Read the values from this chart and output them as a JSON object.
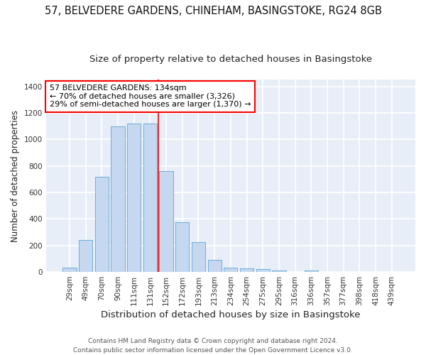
{
  "title1": "57, BELVEDERE GARDENS, CHINEHAM, BASINGSTOKE, RG24 8GB",
  "title2": "Size of property relative to detached houses in Basingstoke",
  "xlabel": "Distribution of detached houses by size in Basingstoke",
  "ylabel": "Number of detached properties",
  "categories": [
    "29sqm",
    "49sqm",
    "70sqm",
    "90sqm",
    "111sqm",
    "131sqm",
    "152sqm",
    "172sqm",
    "193sqm",
    "213sqm",
    "234sqm",
    "254sqm",
    "275sqm",
    "295sqm",
    "316sqm",
    "336sqm",
    "357sqm",
    "377sqm",
    "398sqm",
    "418sqm",
    "439sqm"
  ],
  "values": [
    35,
    242,
    720,
    1100,
    1120,
    1120,
    760,
    378,
    228,
    90,
    35,
    28,
    20,
    12,
    0,
    12,
    0,
    0,
    0,
    0,
    0
  ],
  "bar_color": "#c5d8f0",
  "bar_edge_color": "#6baed6",
  "bar_width": 0.85,
  "red_line_x": 5.5,
  "annotation_line1": "57 BELVEDERE GARDENS: 134sqm",
  "annotation_line2": "← 70% of detached houses are smaller (3,326)",
  "annotation_line3": "29% of semi-detached houses are larger (1,370) →",
  "ylim": [
    0,
    1450
  ],
  "yticks": [
    0,
    200,
    400,
    600,
    800,
    1000,
    1200,
    1400
  ],
  "background_color": "#e8eef8",
  "grid_color": "white",
  "footer": "Contains HM Land Registry data © Crown copyright and database right 2024.\nContains public sector information licensed under the Open Government Licence v3.0.",
  "title1_fontsize": 10.5,
  "title2_fontsize": 9.5,
  "xlabel_fontsize": 9.5,
  "ylabel_fontsize": 8.5,
  "tick_fontsize": 7.5,
  "annotation_fontsize": 8,
  "footer_fontsize": 6.5
}
